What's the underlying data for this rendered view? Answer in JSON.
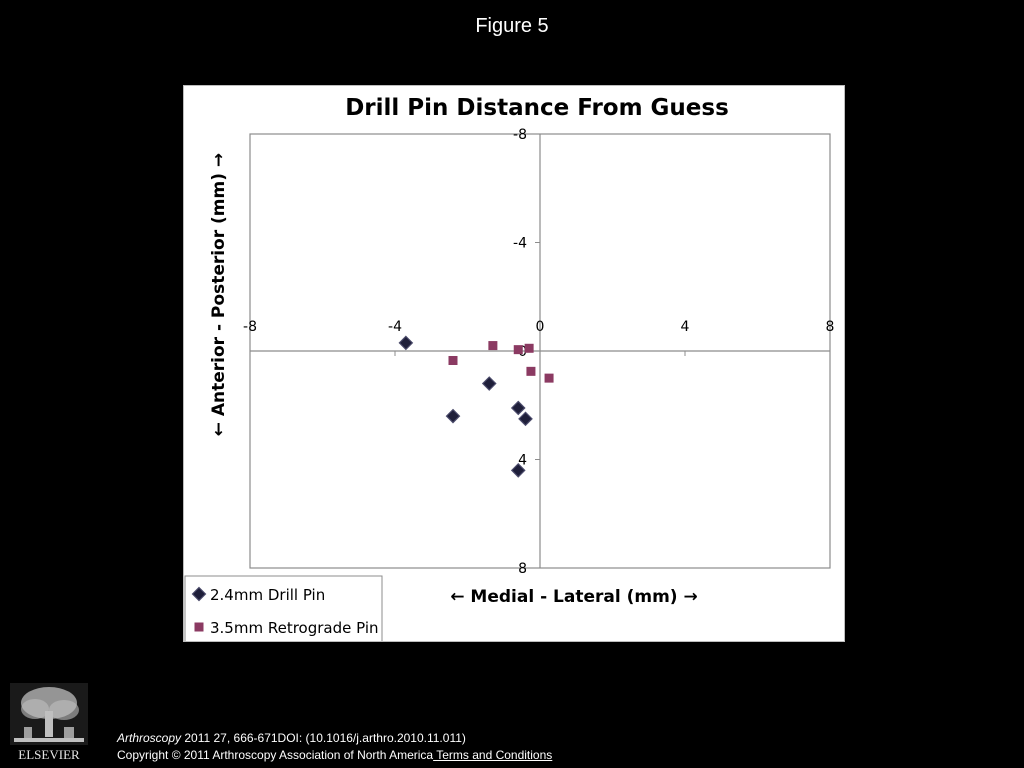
{
  "figure_label": "Figure 5",
  "chart_data": {
    "type": "scatter",
    "title": "Drill Pin Distance From Guess",
    "xlabel": "← Medial - Lateral (mm) →",
    "ylabel": "← Anterior - Posterior (mm) →",
    "xlim": [
      -8,
      8
    ],
    "ylim": [
      -8,
      8
    ],
    "y_inverted": true,
    "xticks": [
      "-8",
      "-4",
      "0",
      "4",
      "8"
    ],
    "yticks": [
      "-8",
      "-4",
      "0",
      "4",
      "8"
    ],
    "grid": false,
    "legend_position": "bottom-left",
    "series": [
      {
        "name": "2.4mm Drill Pin",
        "marker": "diamond",
        "color": "#1f1f3a",
        "points": [
          {
            "x": -3.7,
            "y": -0.3
          },
          {
            "x": -1.4,
            "y": 1.2
          },
          {
            "x": -2.4,
            "y": 2.4
          },
          {
            "x": -0.6,
            "y": 2.1
          },
          {
            "x": -0.4,
            "y": 2.5
          },
          {
            "x": -0.6,
            "y": 4.4
          }
        ]
      },
      {
        "name": "3.5mm Retrograde Pin",
        "marker": "square",
        "color": "#8b3a62",
        "points": [
          {
            "x": -2.4,
            "y": 0.35
          },
          {
            "x": -1.3,
            "y": -0.2
          },
          {
            "x": -0.6,
            "y": -0.05
          },
          {
            "x": -0.3,
            "y": -0.1
          },
          {
            "x": -0.25,
            "y": 0.75
          },
          {
            "x": 0.25,
            "y": 1.0
          }
        ]
      }
    ]
  },
  "citation": {
    "journal": "Arthroscopy",
    "ref": " 2011 27, 666-671DOI: (10.1016/j.arthro.2010.11.011)",
    "copyright": "Copyright © 2011 Arthroscopy Association of North America",
    "terms_link": " Terms and Conditions"
  },
  "publisher_logo_text": "ELSEVIER"
}
